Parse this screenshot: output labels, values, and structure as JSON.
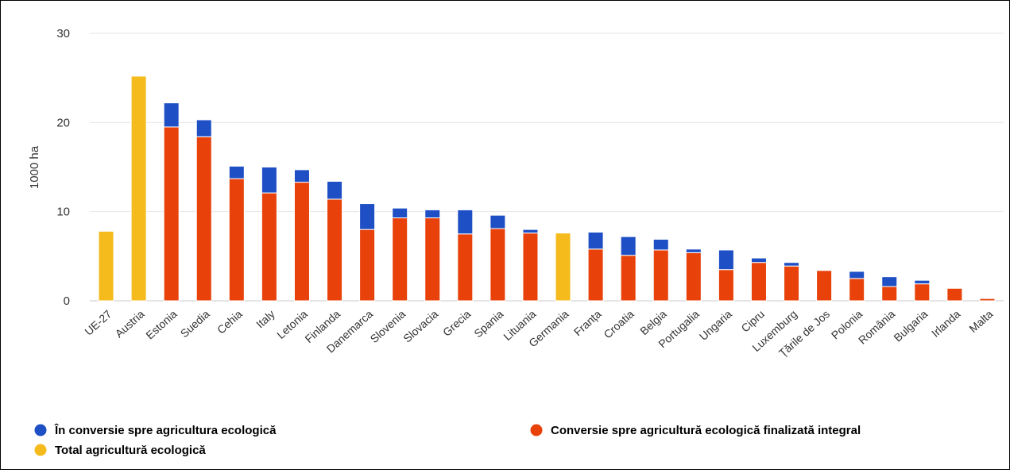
{
  "chart_data": {
    "type": "bar",
    "stacked": true,
    "title": "",
    "xlabel": "",
    "ylabel": "1000 ha",
    "ylim": [
      0,
      30
    ],
    "yticks": [
      0,
      10,
      20,
      30
    ],
    "grid": true,
    "legend_position": "bottom",
    "categories": [
      "UE-27",
      "Austria",
      "Estonia",
      "Suedia",
      "Cehia",
      "Italy",
      "Letonia",
      "Finlanda",
      "Danemarca",
      "Slovenia",
      "Slovacia",
      "Grecia",
      "Spania",
      "Lituania",
      "Germania",
      "Franța",
      "Croatia",
      "Belgia",
      "Portugalia",
      "Ungaria",
      "Cipru",
      "Luxemburg",
      "Țările de Jos",
      "Polonia",
      "România",
      "Bulgaria",
      "Irlanda",
      "Malta"
    ],
    "series": [
      {
        "name": "Conversie spre agricultură ecologică finalizată integral",
        "color": "#e8410a",
        "values": [
          0,
          0,
          19.5,
          18.4,
          13.7,
          12.1,
          13.3,
          11.4,
          8.0,
          9.3,
          9.3,
          7.5,
          8.1,
          7.6,
          0,
          5.8,
          5.1,
          5.7,
          5.4,
          3.5,
          4.3,
          3.9,
          3.4,
          2.5,
          1.6,
          1.9,
          1.4,
          0.25
        ]
      },
      {
        "name": "În conversie spre agricultura ecologică",
        "color": "#1f4fc4",
        "values": [
          0,
          0,
          2.7,
          1.9,
          1.4,
          2.9,
          1.4,
          2.0,
          2.9,
          1.1,
          0.9,
          2.7,
          1.5,
          0.4,
          0,
          1.9,
          2.1,
          1.2,
          0.4,
          2.2,
          0.5,
          0.4,
          0,
          0.8,
          1.1,
          0.4,
          0,
          0
        ]
      },
      {
        "name": "Total agricultură ecologică",
        "color": "#f5bb1c",
        "values": [
          7.8,
          25.2,
          0,
          0,
          0,
          0,
          0,
          0,
          0,
          0,
          0,
          0,
          0,
          0,
          7.6,
          0,
          0,
          0,
          0,
          0,
          0,
          0,
          0,
          0,
          0,
          0,
          0,
          0
        ]
      }
    ]
  },
  "legend": {
    "in_conversion": "În conversie spre agricultura ecologică",
    "completed": "Conversie spre agricultură ecologică finalizată integral",
    "total": "Total agricultură ecologică"
  }
}
